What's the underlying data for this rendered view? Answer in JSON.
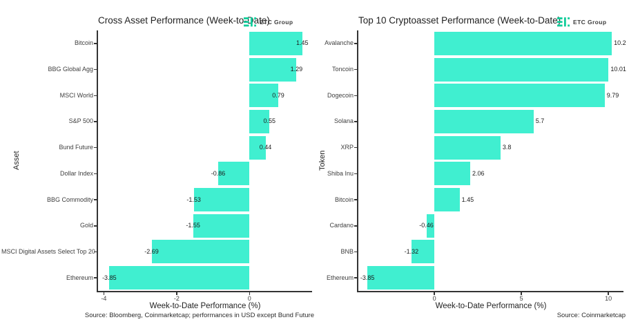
{
  "page": {
    "background": "#ffffff"
  },
  "brand": {
    "name": "ETC Group",
    "logo_color": "#12cd9b",
    "bar_color": "#40efd0",
    "axis_color": "#333333"
  },
  "chart_data": [
    {
      "type": "bar",
      "orientation": "horizontal",
      "title": "Cross Asset Performance (Week-to-Date)",
      "xlabel": "Week-to-Date Performance (%)",
      "ylabel": "Asset",
      "source": "Source: Bloomberg, Coinmarketcap; performances in USD except Bund Future",
      "categories": [
        "Bitcoin",
        "BBG Global Agg",
        "MSCI World",
        "S&P 500",
        "Bund Future",
        "Dollar Index",
        "BBG Commodity",
        "Gold",
        "MSCI Digital Assets Select Top 20",
        "Ethereum"
      ],
      "values": [
        1.45,
        1.29,
        0.79,
        0.55,
        0.44,
        -0.86,
        -1.53,
        -1.55,
        -2.69,
        -3.85
      ],
      "value_labels": [
        "1.45",
        "1.29",
        "0.79",
        "0.55",
        "0.44",
        "-0.86",
        "-1.53",
        "-1.55",
        "-2.69",
        "-3.85"
      ],
      "xlim": [
        -4.16,
        1.72
      ],
      "xticks": [
        {
          "value": -4,
          "label": "-4"
        },
        {
          "value": -2,
          "label": "-2"
        },
        {
          "value": 0,
          "label": "0"
        }
      ],
      "grid": false,
      "legend": "none",
      "value_label_position": "tip-center"
    },
    {
      "type": "bar",
      "orientation": "horizontal",
      "title": "Top 10 Cryptoasset Performance (Week-to-Date)",
      "xlabel": "Week-to-Date Performance (%)",
      "ylabel": "Token",
      "source": "Source: Coinmarketcap",
      "categories": [
        "Avalanche",
        "Toncoin",
        "Dogecoin",
        "Solana",
        "XRP",
        "Shiba Inu",
        "Bitcoin",
        "Cardano",
        "BNB",
        "Ethereum"
      ],
      "values": [
        10.2,
        10.01,
        9.79,
        5.7,
        3.8,
        2.06,
        1.45,
        -0.46,
        -1.32,
        -3.85
      ],
      "value_labels": [
        "10.2",
        "10.01",
        "9.79",
        "5.7",
        "3.8",
        "2.06",
        "1.45",
        "-0.46",
        "-1.32",
        "-3.85"
      ],
      "xlim": [
        -4.37,
        10.87
      ],
      "xticks": [
        {
          "value": 0,
          "label": "0"
        },
        {
          "value": 5,
          "label": "5"
        },
        {
          "value": 10,
          "label": "10"
        }
      ],
      "grid": false,
      "legend": "none",
      "value_label_position": "outside-positive"
    }
  ]
}
